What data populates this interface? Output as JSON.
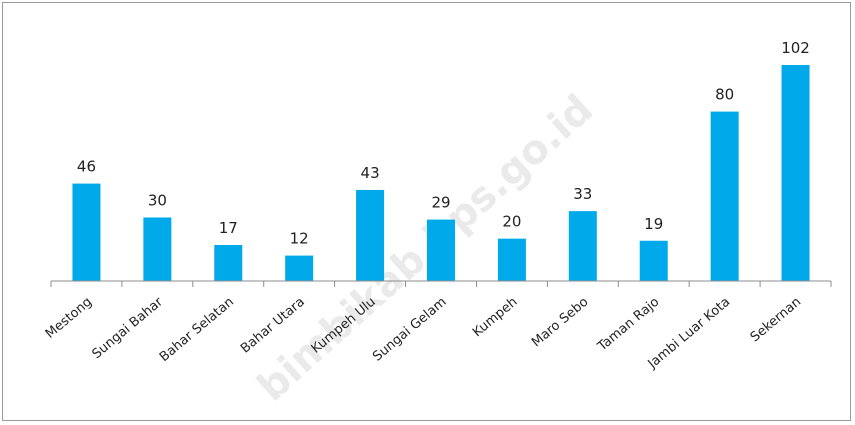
{
  "watermark": "bimbikab.bps.go.id",
  "chart_data": {
    "type": "bar",
    "title": "",
    "xlabel": "",
    "ylabel": "",
    "categories": [
      "Mestong",
      "Sungai Bahar",
      "Bahar Selatan",
      "Bahar Utara",
      "Kumpeh Ulu",
      "Sungai Gelam",
      "Kumpeh",
      "Maro Sebo",
      "Taman Rajo",
      "Jambi Luar Kota",
      "Sekernan"
    ],
    "values": [
      46,
      30,
      17,
      12,
      43,
      29,
      20,
      33,
      19,
      80,
      102
    ],
    "ylim": [
      0,
      102
    ],
    "grid": false,
    "legend": "none",
    "bar_color": "#00a9ea",
    "axis_color": "#8c8c8c"
  }
}
